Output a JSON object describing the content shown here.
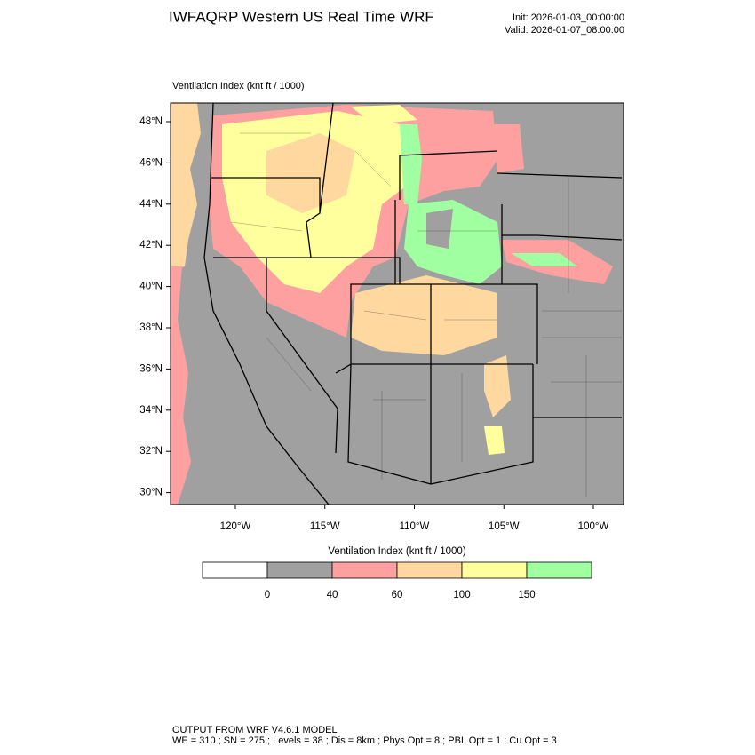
{
  "title": "IWFAQRP Western US Real Time WRF",
  "init": "Init: 2026-01-03_00:00:00",
  "valid": "Valid: 2026-01-07_08:00:00",
  "map": {
    "subtitle": "Ventilation Index   (knt ft / 1000)",
    "lat_ticks": [
      {
        "value": 48,
        "label": "48°N"
      },
      {
        "value": 46,
        "label": "46°N"
      },
      {
        "value": 44,
        "label": "44°N"
      },
      {
        "value": 42,
        "label": "42°N"
      },
      {
        "value": 40,
        "label": "40°N"
      },
      {
        "value": 38,
        "label": "38°N"
      },
      {
        "value": 36,
        "label": "36°N"
      },
      {
        "value": 34,
        "label": "34°N"
      },
      {
        "value": 32,
        "label": "32°N"
      },
      {
        "value": 30,
        "label": "30°N"
      }
    ],
    "lon_ticks": [
      {
        "value": -120,
        "label": "120°W"
      },
      {
        "value": -115,
        "label": "115°W"
      },
      {
        "value": -110,
        "label": "110°W"
      },
      {
        "value": -105,
        "label": "105°W"
      },
      {
        "value": -100,
        "label": "100°W"
      }
    ]
  },
  "colorbar": {
    "title": "Ventilation Index   (knt ft / 1000)",
    "colors": [
      "#ffffff",
      "#a0a0a0",
      "#ffa0a0",
      "#ffd8a0",
      "#ffff9e",
      "#a0ffa0"
    ],
    "levels": [
      0,
      40,
      60,
      100,
      150
    ]
  },
  "footer": [
    "OUTPUT FROM WRF V4.6.1 MODEL",
    "WE = 310 ; SN = 275 ; Levels = 38 ; Dis = 8km ; Phys Opt = 8 ; PBL Opt = 1 ; Cu Opt = 3"
  ]
}
